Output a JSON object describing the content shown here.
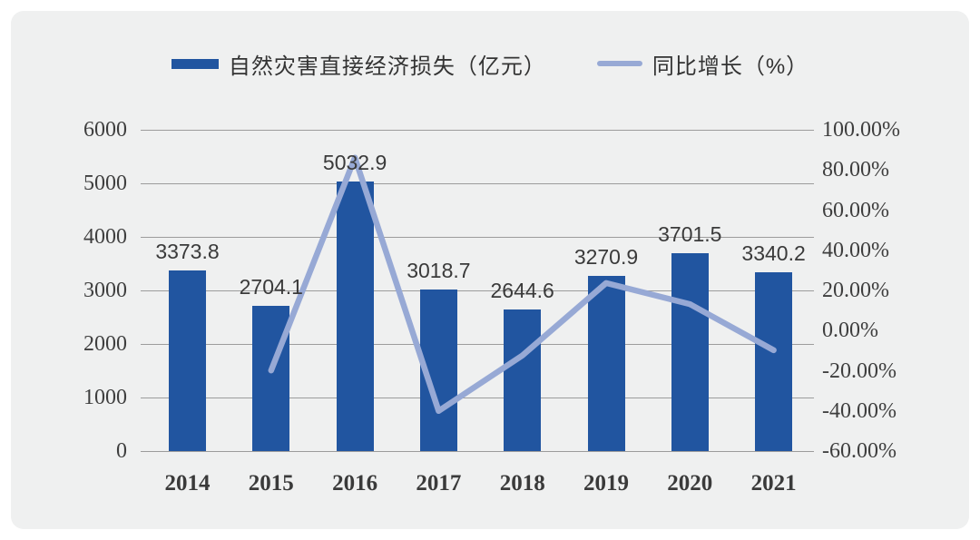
{
  "chart_data": {
    "type": "bar",
    "subtype": "combo-bar-line-dual-axis",
    "title": "",
    "categories": [
      "2014",
      "2015",
      "2016",
      "2017",
      "2018",
      "2019",
      "2020",
      "2021"
    ],
    "series": [
      {
        "name": "自然灾害直接经济损失（亿元）",
        "type": "bar",
        "axis": "left",
        "color": "#2155A0",
        "values": [
          3373.8,
          2704.1,
          5032.9,
          3018.7,
          2644.6,
          3270.9,
          3701.5,
          3340.2
        ],
        "data_labels": [
          "3373.8",
          "2704.1",
          "5032.9",
          "3018.7",
          "2644.6",
          "3270.9",
          "3701.5",
          "3340.2"
        ]
      },
      {
        "name": "同比增长（%）",
        "type": "line",
        "axis": "right",
        "color": "#97A9D5",
        "values": [
          null,
          -19.85,
          86.12,
          -40.02,
          -12.39,
          23.68,
          13.17,
          -9.76
        ]
      }
    ],
    "left_axis": {
      "min": 0,
      "max": 6000,
      "step": 1000,
      "tick_labels": [
        "6000",
        "5000",
        "4000",
        "3000",
        "2000",
        "1000",
        "0"
      ]
    },
    "right_axis": {
      "min": -60,
      "max": 100,
      "step": 20,
      "tick_labels": [
        "100.00%",
        "80.00%",
        "60.00%",
        "40.00%",
        "20.00%",
        "0.00%",
        "-20.00%",
        "-40.00%",
        "-60.00%"
      ]
    },
    "grid": true,
    "legend_position": "top",
    "background_color": "#EFF0F0",
    "gridline_color": "#9C9C9C",
    "text_color": "#3E3E3E"
  },
  "legend": {
    "bar_label": "自然灾害直接经济损失（亿元）",
    "line_label": "同比增长（%）"
  }
}
